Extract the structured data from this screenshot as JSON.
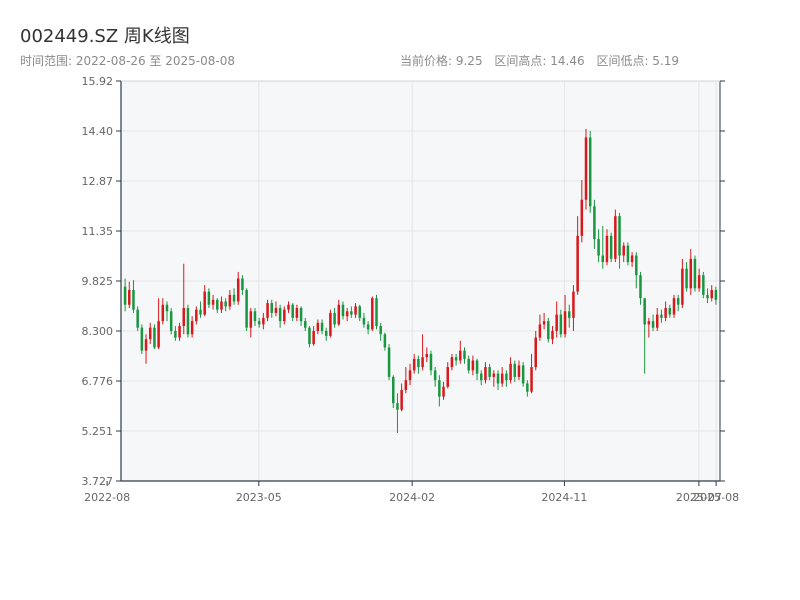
{
  "header": {
    "title": "002449.SZ 周K线图",
    "range": "时间范围: 2022-08-26 至 2025-08-08",
    "current_price": "当前价格: 9.25",
    "range_high": "区间高点: 14.46",
    "range_low": "区间低点: 5.19"
  },
  "colors": {
    "up": "#d7191c",
    "down": "#1a9641",
    "plot_bg": "#f6f7f9",
    "grid": "#e2e6ea",
    "axis": "#2f3a48"
  },
  "chart_data": {
    "type": "candlestick",
    "title": "002449.SZ 周K线图",
    "xlabel": "",
    "ylabel": "",
    "ylim": [
      3.727,
      15.92
    ],
    "y_ticks": [
      "15.92",
      "14.40",
      "12.87",
      "11.35",
      "9.825",
      "8.300",
      "6.776",
      "5.251",
      "3.727"
    ],
    "x_ticks": [
      {
        "label": "2022-08",
        "date": "2022-08-01"
      },
      {
        "label": "2023-05",
        "date": "2023-05-01"
      },
      {
        "label": "2024-02",
        "date": "2024-02-01"
      },
      {
        "label": "2024-11",
        "date": "2024-11-01"
      },
      {
        "label": "2025-07",
        "date": "2025-07-01"
      },
      {
        "label": "2025-08",
        "date": "2025-08-01"
      }
    ],
    "x_start": "2022-08-26",
    "x_end": "2025-08-08",
    "grid": true,
    "candles": [
      [
        9.65,
        9.1,
        9.9,
        8.9
      ],
      [
        9.1,
        9.55,
        9.8,
        9.0
      ],
      [
        9.55,
        8.95,
        9.85,
        8.85
      ],
      [
        8.95,
        8.4,
        9.05,
        8.3
      ],
      [
        8.4,
        7.7,
        8.5,
        7.6
      ],
      [
        7.7,
        8.05,
        8.2,
        7.3
      ],
      [
        8.05,
        8.4,
        8.55,
        7.9
      ],
      [
        8.4,
        7.8,
        8.5,
        7.75
      ],
      [
        7.8,
        8.6,
        9.3,
        7.75
      ],
      [
        8.6,
        9.1,
        9.3,
        8.5
      ],
      [
        9.1,
        8.9,
        9.2,
        8.6
      ],
      [
        8.9,
        8.3,
        9.0,
        8.2
      ],
      [
        8.3,
        8.1,
        8.45,
        8.0
      ],
      [
        8.1,
        8.45,
        8.55,
        8.0
      ],
      [
        8.45,
        9.0,
        10.35,
        8.2
      ],
      [
        9.0,
        8.2,
        9.1,
        8.1
      ],
      [
        8.2,
        8.6,
        8.75,
        8.1
      ],
      [
        8.6,
        8.95,
        9.05,
        8.5
      ],
      [
        8.95,
        8.8,
        9.2,
        8.7
      ],
      [
        8.8,
        9.5,
        9.7,
        8.75
      ],
      [
        9.5,
        9.1,
        9.6,
        9.0
      ],
      [
        9.1,
        9.25,
        9.4,
        8.95
      ],
      [
        9.25,
        8.95,
        9.3,
        8.85
      ],
      [
        8.95,
        9.2,
        9.35,
        8.85
      ],
      [
        9.2,
        9.05,
        9.3,
        8.9
      ],
      [
        9.05,
        9.4,
        9.55,
        8.95
      ],
      [
        9.4,
        9.2,
        9.6,
        9.1
      ],
      [
        9.2,
        9.9,
        10.1,
        9.1
      ],
      [
        9.9,
        9.55,
        10.0,
        9.4
      ],
      [
        9.55,
        8.4,
        9.6,
        8.3
      ],
      [
        8.4,
        8.9,
        9.0,
        8.1
      ],
      [
        8.9,
        8.6,
        9.0,
        8.45
      ],
      [
        8.6,
        8.5,
        8.7,
        8.4
      ],
      [
        8.5,
        8.7,
        8.85,
        8.35
      ],
      [
        8.7,
        9.15,
        9.25,
        8.6
      ],
      [
        9.15,
        8.85,
        9.25,
        8.7
      ],
      [
        8.85,
        9.0,
        9.2,
        8.75
      ],
      [
        9.0,
        8.6,
        9.1,
        8.4
      ],
      [
        8.6,
        8.95,
        9.05,
        8.5
      ],
      [
        8.95,
        9.1,
        9.2,
        8.85
      ],
      [
        9.1,
        8.7,
        9.15,
        8.6
      ],
      [
        8.7,
        9.0,
        9.1,
        8.6
      ],
      [
        9.0,
        8.6,
        9.05,
        8.45
      ],
      [
        8.6,
        8.4,
        8.7,
        8.3
      ],
      [
        8.4,
        7.9,
        8.45,
        7.8
      ],
      [
        7.9,
        8.3,
        8.45,
        7.85
      ],
      [
        8.3,
        8.55,
        8.65,
        8.2
      ],
      [
        8.55,
        8.3,
        8.65,
        8.2
      ],
      [
        8.3,
        8.15,
        8.4,
        8.0
      ],
      [
        8.15,
        8.85,
        8.95,
        8.1
      ],
      [
        8.85,
        8.5,
        9.0,
        8.4
      ],
      [
        8.5,
        9.1,
        9.25,
        8.45
      ],
      [
        9.1,
        8.75,
        9.2,
        8.65
      ],
      [
        8.75,
        8.9,
        9.0,
        8.6
      ],
      [
        8.9,
        8.8,
        9.05,
        8.7
      ],
      [
        8.8,
        9.05,
        9.15,
        8.7
      ],
      [
        9.05,
        8.7,
        9.1,
        8.6
      ],
      [
        8.7,
        8.5,
        8.85,
        8.4
      ],
      [
        8.5,
        8.35,
        8.6,
        8.2
      ],
      [
        8.35,
        9.3,
        9.35,
        8.3
      ],
      [
        9.3,
        8.45,
        9.4,
        8.35
      ],
      [
        8.45,
        8.2,
        8.55,
        8.0
      ],
      [
        8.2,
        7.8,
        8.25,
        7.7
      ],
      [
        7.8,
        6.9,
        7.9,
        6.8
      ],
      [
        6.9,
        6.1,
        6.95,
        5.95
      ],
      [
        6.1,
        5.9,
        6.4,
        5.19
      ],
      [
        5.9,
        6.5,
        6.7,
        5.85
      ],
      [
        6.5,
        6.8,
        7.2,
        6.4
      ],
      [
        6.8,
        7.1,
        7.3,
        6.65
      ],
      [
        7.1,
        7.45,
        7.6,
        7.0
      ],
      [
        7.45,
        7.2,
        7.55,
        7.0
      ],
      [
        7.2,
        7.5,
        8.2,
        7.1
      ],
      [
        7.5,
        7.6,
        7.8,
        7.35
      ],
      [
        7.6,
        7.1,
        7.7,
        6.95
      ],
      [
        7.1,
        6.8,
        7.2,
        6.6
      ],
      [
        6.8,
        6.3,
        6.95,
        6.0
      ],
      [
        6.3,
        6.6,
        6.75,
        6.2
      ],
      [
        6.6,
        7.2,
        7.35,
        6.55
      ],
      [
        7.2,
        7.5,
        7.6,
        7.1
      ],
      [
        7.5,
        7.4,
        7.6,
        7.25
      ],
      [
        7.4,
        7.7,
        8.0,
        7.3
      ],
      [
        7.7,
        7.45,
        7.8,
        7.3
      ],
      [
        7.45,
        7.1,
        7.55,
        7.0
      ],
      [
        7.1,
        7.4,
        7.55,
        6.95
      ],
      [
        7.4,
        7.0,
        7.45,
        6.8
      ],
      [
        7.0,
        6.8,
        7.1,
        6.65
      ],
      [
        6.8,
        7.2,
        7.35,
        6.7
      ],
      [
        7.2,
        6.9,
        7.3,
        6.8
      ],
      [
        6.9,
        7.0,
        7.1,
        6.6
      ],
      [
        7.0,
        6.7,
        7.1,
        6.5
      ],
      [
        6.7,
        7.0,
        7.2,
        6.6
      ],
      [
        7.0,
        6.8,
        7.1,
        6.6
      ],
      [
        6.8,
        7.3,
        7.5,
        6.7
      ],
      [
        7.3,
        6.9,
        7.4,
        6.75
      ],
      [
        6.9,
        7.25,
        7.4,
        6.8
      ],
      [
        7.25,
        6.7,
        7.35,
        6.6
      ],
      [
        6.7,
        6.45,
        6.8,
        6.3
      ],
      [
        6.45,
        7.2,
        7.6,
        6.4
      ],
      [
        7.2,
        8.1,
        8.3,
        7.1
      ],
      [
        8.1,
        8.5,
        8.8,
        8.0
      ],
      [
        8.5,
        8.6,
        8.85,
        8.35
      ],
      [
        8.6,
        8.05,
        8.7,
        7.95
      ],
      [
        8.05,
        8.3,
        8.45,
        7.9
      ],
      [
        8.3,
        8.8,
        9.2,
        8.1
      ],
      [
        8.8,
        8.2,
        8.95,
        8.1
      ],
      [
        8.2,
        8.9,
        9.4,
        8.1
      ],
      [
        8.9,
        8.7,
        9.1,
        8.4
      ],
      [
        8.7,
        9.5,
        9.7,
        8.3
      ],
      [
        9.5,
        11.2,
        11.8,
        9.4
      ],
      [
        11.2,
        12.3,
        12.9,
        11.0
      ],
      [
        12.3,
        14.2,
        14.46,
        12.0
      ],
      [
        14.2,
        12.1,
        14.4,
        11.9
      ],
      [
        12.1,
        11.1,
        12.3,
        10.8
      ],
      [
        11.1,
        10.6,
        11.4,
        10.4
      ],
      [
        10.6,
        10.4,
        11.5,
        10.2
      ],
      [
        10.4,
        11.2,
        11.4,
        10.3
      ],
      [
        11.2,
        10.5,
        11.3,
        10.4
      ],
      [
        10.5,
        11.8,
        12.0,
        10.4
      ],
      [
        11.8,
        10.6,
        11.9,
        10.2
      ],
      [
        10.6,
        10.9,
        11.0,
        10.4
      ],
      [
        10.9,
        10.4,
        11.0,
        10.3
      ],
      [
        10.4,
        10.6,
        10.7,
        10.25
      ],
      [
        10.6,
        10.0,
        10.7,
        9.6
      ],
      [
        10.0,
        9.3,
        10.1,
        9.1
      ],
      [
        9.3,
        8.5,
        8.7,
        7.0
      ],
      [
        8.5,
        8.6,
        8.7,
        8.1
      ],
      [
        8.6,
        8.4,
        8.8,
        8.3
      ],
      [
        8.4,
        8.8,
        9.0,
        8.3
      ],
      [
        8.8,
        8.7,
        8.95,
        8.55
      ],
      [
        8.7,
        9.0,
        9.2,
        8.6
      ],
      [
        9.0,
        8.8,
        9.1,
        8.7
      ],
      [
        8.8,
        9.3,
        9.4,
        8.7
      ],
      [
        9.3,
        9.1,
        9.4,
        8.9
      ],
      [
        9.1,
        10.2,
        10.5,
        9.0
      ],
      [
        10.2,
        9.6,
        10.4,
        9.5
      ],
      [
        9.6,
        10.5,
        10.8,
        9.4
      ],
      [
        10.5,
        9.6,
        10.6,
        9.5
      ],
      [
        9.6,
        10.0,
        10.2,
        9.5
      ],
      [
        10.0,
        9.4,
        10.1,
        9.3
      ],
      [
        9.4,
        9.3,
        9.6,
        9.15
      ],
      [
        9.3,
        9.55,
        9.7,
        9.2
      ],
      [
        9.55,
        9.25,
        9.65,
        9.1
      ]
    ]
  }
}
